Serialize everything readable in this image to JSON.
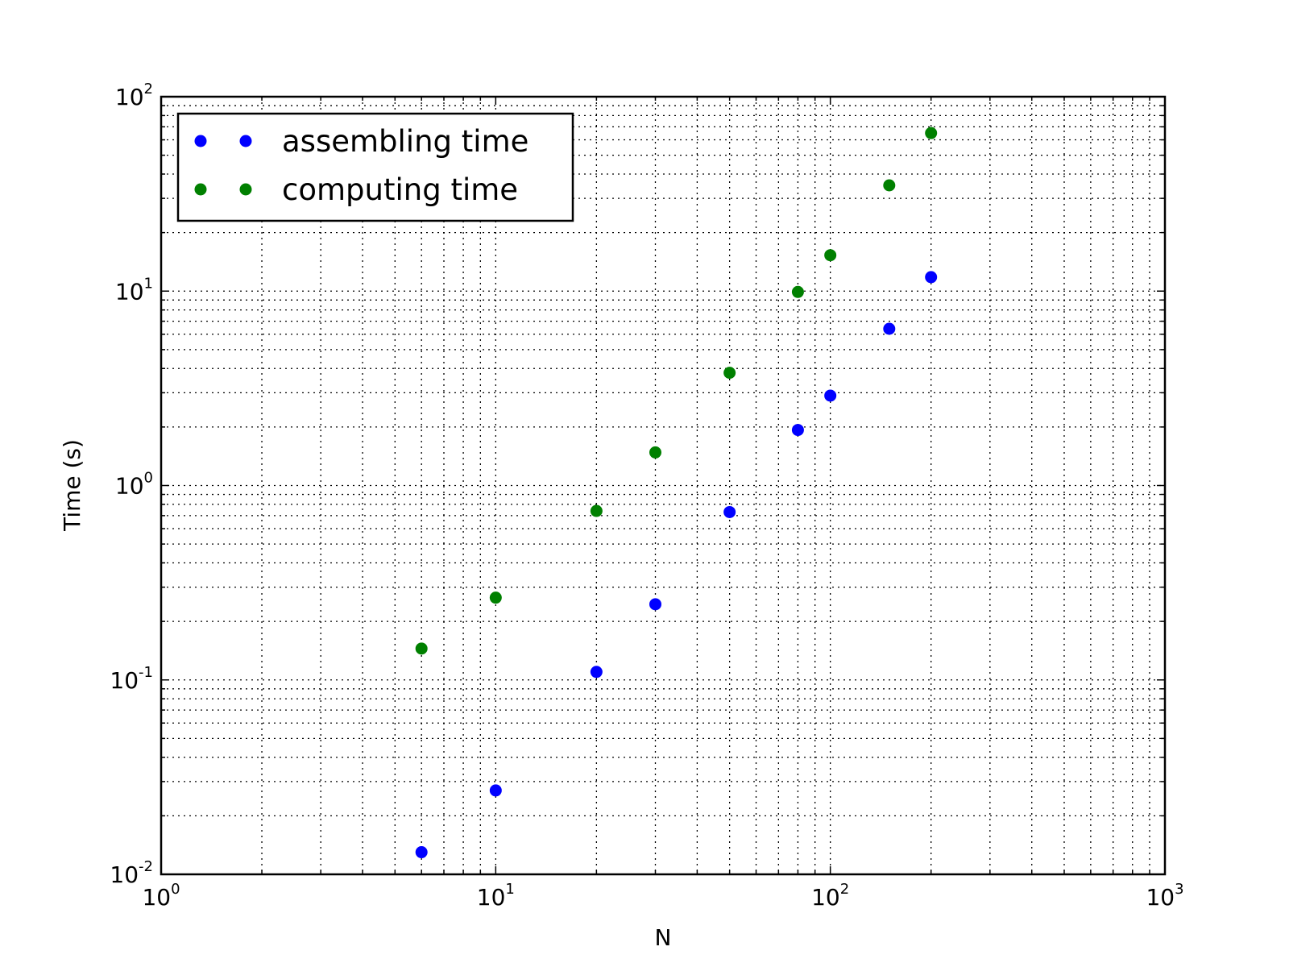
{
  "chart_data": {
    "type": "scatter",
    "title": "",
    "xlabel": "N",
    "ylabel": "Time (s)",
    "x_scale": "log",
    "y_scale": "log",
    "xlim": [
      1,
      1000
    ],
    "ylim": [
      0.01,
      100
    ],
    "grid": true,
    "legend_position": "top-left",
    "x_ticks": [
      {
        "base": "10",
        "exp": "0"
      },
      {
        "base": "10",
        "exp": "1"
      },
      {
        "base": "10",
        "exp": "2"
      },
      {
        "base": "10",
        "exp": "3"
      }
    ],
    "y_ticks": [
      {
        "base": "10",
        "exp": "-2"
      },
      {
        "base": "10",
        "exp": "-1"
      },
      {
        "base": "10",
        "exp": "0"
      },
      {
        "base": "10",
        "exp": "1"
      },
      {
        "base": "10",
        "exp": "2"
      }
    ],
    "series": [
      {
        "name": "assembling time",
        "color": "#0000ff",
        "points": [
          {
            "x": 6,
            "y": 0.013
          },
          {
            "x": 10,
            "y": 0.027
          },
          {
            "x": 20,
            "y": 0.11
          },
          {
            "x": 30,
            "y": 0.245
          },
          {
            "x": 50,
            "y": 0.73
          },
          {
            "x": 80,
            "y": 1.93
          },
          {
            "x": 100,
            "y": 2.9
          },
          {
            "x": 150,
            "y": 6.4
          },
          {
            "x": 200,
            "y": 11.8
          }
        ]
      },
      {
        "name": "computing time",
        "color": "#008000",
        "points": [
          {
            "x": 6,
            "y": 0.145
          },
          {
            "x": 10,
            "y": 0.265
          },
          {
            "x": 20,
            "y": 0.74
          },
          {
            "x": 30,
            "y": 1.48
          },
          {
            "x": 50,
            "y": 3.8
          },
          {
            "x": 80,
            "y": 9.9
          },
          {
            "x": 100,
            "y": 15.3
          },
          {
            "x": 150,
            "y": 35
          },
          {
            "x": 200,
            "y": 65
          }
        ]
      }
    ]
  }
}
